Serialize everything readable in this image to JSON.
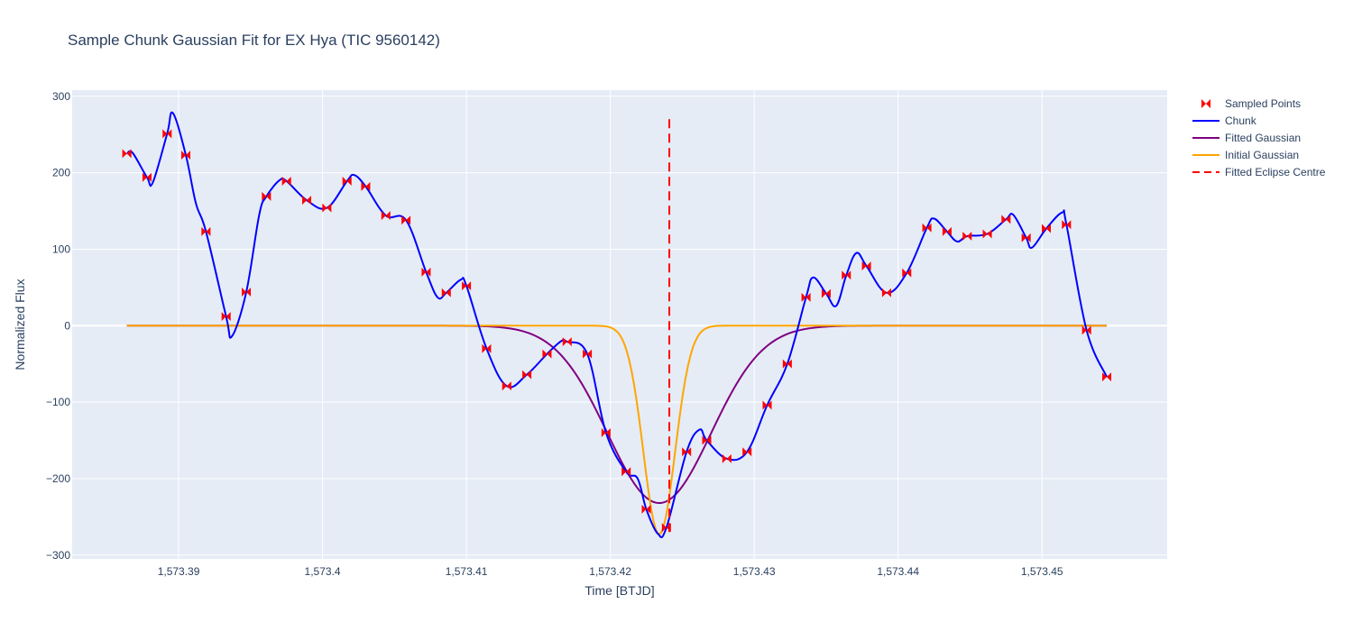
{
  "chart_data": {
    "type": "line",
    "title": "Sample Chunk Gaussian Fit for EX Hya (TIC 9560142)",
    "xlabel": "Time [BTJD]",
    "ylabel": "Normalized Flux",
    "xlim": [
      1573.3826,
      1573.4587
    ],
    "ylim": [
      -305,
      308
    ],
    "x_ticks": [
      1573.39,
      1573.4,
      1573.41,
      1573.42,
      1573.43,
      1573.44,
      1573.45
    ],
    "x_tick_labels": [
      "1,573.39",
      "1,573.4",
      "1,573.41",
      "1,573.42",
      "1,573.43",
      "1,573.44",
      "1,573.45"
    ],
    "y_ticks": [
      -300,
      -200,
      -100,
      0,
      100,
      200,
      300
    ],
    "y_tick_labels": [
      "−300",
      "−200",
      "−100",
      "0",
      "100",
      "200",
      "300"
    ],
    "grid": true,
    "legend_position": "top-right outside",
    "series": [
      {
        "name": "Sampled Points",
        "kind": "markers",
        "marker": "bowtie",
        "color": "#ff0000",
        "x": [
          1573.3864,
          1573.3878,
          1573.3892,
          1573.3905,
          1573.3919,
          1573.3933,
          1573.3947,
          1573.3961,
          1573.3975,
          1573.3989,
          1573.4003,
          1573.4017,
          1573.403,
          1573.4044,
          1573.4058,
          1573.4072,
          1573.4086,
          1573.41,
          1573.4114,
          1573.4128,
          1573.4142,
          1573.4156,
          1573.417,
          1573.4184,
          1573.4197,
          1573.4211,
          1573.4225,
          1573.4239,
          1573.4253,
          1573.4267,
          1573.4281,
          1573.4295,
          1573.4309,
          1573.4323,
          1573.4336,
          1573.435,
          1573.4364,
          1573.4378,
          1573.4392,
          1573.4406,
          1573.442,
          1573.4434,
          1573.4448,
          1573.4462,
          1573.4475,
          1573.4489,
          1573.4503,
          1573.4517,
          1573.4531,
          1573.4545
        ],
        "y": [
          225,
          194,
          251,
          223,
          123,
          12,
          44,
          169,
          189,
          164,
          154,
          189,
          182,
          144,
          138,
          70,
          43,
          52,
          -30,
          -79,
          -64,
          -37,
          -21,
          -37,
          -140,
          -191,
          -240,
          -264,
          -165,
          -150,
          -174,
          -165,
          -104,
          -50,
          37,
          42,
          66,
          78,
          43,
          69,
          128,
          123,
          117,
          120,
          139,
          115,
          127,
          132,
          -6,
          -67
        ]
      },
      {
        "name": "Chunk",
        "kind": "line",
        "color": "#0000ff",
        "x": [
          1573.3864,
          1573.3868,
          1573.3878,
          1573.3882,
          1573.3892,
          1573.3896,
          1573.3905,
          1573.3912,
          1573.3919,
          1573.3933,
          1573.3937,
          1573.3947,
          1573.3956,
          1573.3961,
          1573.397,
          1573.3975,
          1573.3989,
          1573.4003,
          1573.4017,
          1573.4022,
          1573.403,
          1573.4044,
          1573.4058,
          1573.4072,
          1573.408,
          1573.4086,
          1573.4096,
          1573.41,
          1573.4114,
          1573.4128,
          1573.4142,
          1573.4156,
          1573.4166,
          1573.417,
          1573.4184,
          1573.4197,
          1573.4211,
          1573.4219,
          1573.4225,
          1573.4233,
          1573.4239,
          1573.4253,
          1573.4262,
          1573.4267,
          1573.4281,
          1573.4295,
          1573.4309,
          1573.4323,
          1573.4336,
          1573.4341,
          1573.435,
          1573.4357,
          1573.4364,
          1573.4371,
          1573.4378,
          1573.4392,
          1573.4406,
          1573.442,
          1573.4425,
          1573.4434,
          1573.4441,
          1573.4448,
          1573.4462,
          1573.4475,
          1573.448,
          1573.4489,
          1573.4493,
          1573.4503,
          1573.4514,
          1573.4517,
          1573.4531,
          1573.4545
        ],
        "y": [
          225,
          226,
          194,
          187,
          251,
          278,
          223,
          160,
          123,
          12,
          -14,
          44,
          145,
          169,
          190,
          189,
          164,
          154,
          189,
          197,
          182,
          144,
          138,
          70,
          37,
          43,
          60,
          52,
          -30,
          -79,
          -64,
          -37,
          -20,
          -21,
          -37,
          -140,
          -191,
          -200,
          -240,
          -272,
          -264,
          -165,
          -136,
          -150,
          -174,
          -165,
          -104,
          -50,
          37,
          63,
          42,
          26,
          66,
          95,
          78,
          43,
          69,
          128,
          140,
          123,
          110,
          117,
          120,
          139,
          145,
          115,
          102,
          127,
          148,
          132,
          -6,
          -67
        ]
      },
      {
        "name": "Fitted Gaussian",
        "kind": "gaussian",
        "color": "#800080",
        "amplitude": -232,
        "center": 1573.4234,
        "sigma": 0.0036,
        "x_range": [
          1573.3864,
          1573.4545
        ]
      },
      {
        "name": "Initial Gaussian",
        "kind": "gaussian",
        "color": "#ffa500",
        "amplitude": -273,
        "center": 1573.4234,
        "sigma": 0.0011,
        "x_range": [
          1573.3864,
          1573.4545
        ]
      },
      {
        "name": "Fitted Eclipse Centre",
        "kind": "vline",
        "dash": "dash",
        "color": "#ff0000",
        "x": 1573.4241,
        "y_range": [
          -272,
          270
        ]
      }
    ]
  }
}
